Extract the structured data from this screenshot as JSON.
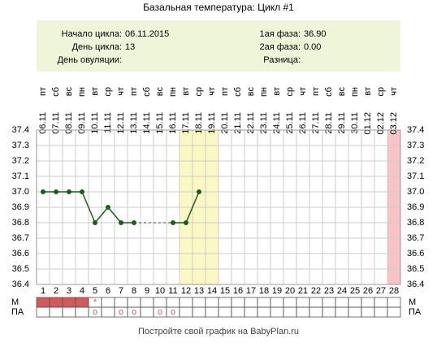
{
  "title": "Базальная температура: Цикл #1",
  "info": {
    "left": [
      {
        "label": "Начало цикла:",
        "value": "06.11.2015"
      },
      {
        "label": "День цикла:",
        "value": "13"
      },
      {
        "label": "День овуляции:",
        "value": ""
      }
    ],
    "right": [
      {
        "label": "1ая фаза:",
        "value": "36.90"
      },
      {
        "label": "2ая фаза:",
        "value": "0.00"
      },
      {
        "label": "Разница:",
        "value": ""
      }
    ]
  },
  "chart_data": {
    "type": "line",
    "categories": [
      1,
      2,
      3,
      4,
      5,
      6,
      7,
      8,
      9,
      10,
      11,
      12,
      13,
      14,
      15,
      16,
      17,
      18,
      19,
      20,
      21,
      22,
      23,
      24,
      25,
      26,
      27,
      28
    ],
    "dates": [
      "06.11",
      "07.11",
      "08.11",
      "09.11",
      "10.11",
      "11.11",
      "12.11",
      "13.11",
      "14.11",
      "15.11",
      "16.11",
      "17.11",
      "18.11",
      "19.11",
      "20.11",
      "21.11",
      "22.11",
      "23.11",
      "24.11",
      "25.11",
      "26.11",
      "27.11",
      "28.11",
      "29.11",
      "30.11",
      "01.12",
      "02.12",
      "03.12"
    ],
    "weekdays": [
      "пт",
      "сб",
      "вс",
      "пн",
      "вт",
      "ср",
      "чт",
      "пт",
      "сб",
      "вс",
      "пн",
      "вт",
      "ср",
      "чт",
      "пт",
      "сб",
      "вс",
      "пн",
      "вт",
      "ср",
      "чт",
      "пт",
      "сб",
      "вс",
      "пн",
      "вт",
      "ср",
      "чт"
    ],
    "values": [
      37.0,
      37.0,
      37.0,
      37.0,
      36.8,
      36.9,
      36.8,
      36.8,
      null,
      null,
      36.8,
      36.8,
      37.0,
      null,
      null,
      null,
      null,
      null,
      null,
      null,
      null,
      null,
      null,
      null,
      null,
      null,
      null,
      null
    ],
    "color": "#1b5e1b",
    "ylim": [
      36.4,
      37.4
    ],
    "yticks": [
      36.4,
      36.5,
      36.6,
      36.7,
      36.8,
      36.9,
      {
        "value": 37.0,
        "label": "37.0"
      },
      37.1,
      37.2,
      37.3,
      37.4
    ],
    "grid": true,
    "highlight": {
      "days": [
        12,
        13,
        14
      ],
      "color": "#fbf8c4"
    },
    "end_marker": {
      "days": [
        28
      ],
      "color": "#f8c3c3"
    },
    "rows": [
      {
        "label": "М",
        "filled": [
          1,
          2,
          3,
          4
        ],
        "fill_color": "#d45a5a",
        "marks": [
          {
            "day": 5,
            "symbol": "*"
          }
        ]
      },
      {
        "label": "ПА",
        "filled": [],
        "fill_color": "#d45a5a",
        "marks": [
          {
            "day": 5,
            "symbol": "o"
          },
          {
            "day": 7,
            "symbol": "o"
          },
          {
            "day": 8,
            "symbol": "o"
          },
          {
            "day": 10,
            "symbol": "o"
          },
          {
            "day": 11,
            "symbol": "o"
          }
        ]
      }
    ]
  },
  "footer": "Постройте свой график на BabyPlan.ru"
}
